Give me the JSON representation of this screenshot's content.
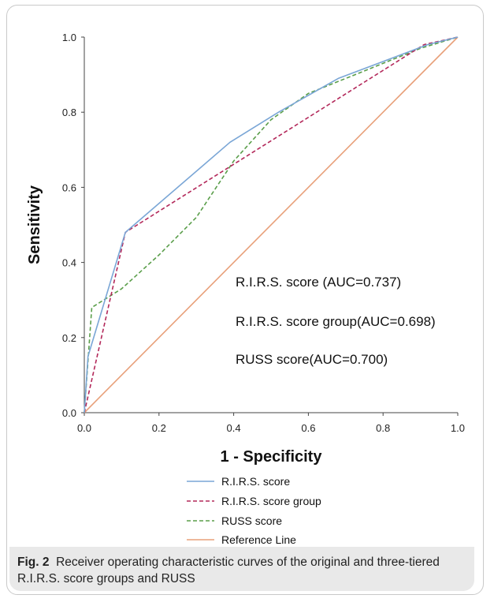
{
  "figure": {
    "label": "Fig. 2",
    "caption": "Receiver operating characteristic curves of the original and three-tiered R.I.R.S. score groups and RUSS"
  },
  "chart_data": {
    "type": "line",
    "xlabel": "1 - Specificity",
    "ylabel": "Sensitivity",
    "xlim": [
      0,
      1
    ],
    "ylim": [
      0,
      1
    ],
    "xticks": [
      "0.0",
      "0.2",
      "0.4",
      "0.6",
      "0.8",
      "1.0"
    ],
    "yticks": [
      "0.0",
      "0.2",
      "0.4",
      "0.6",
      "0.8",
      "1.0"
    ],
    "grid": false,
    "legend_position": "bottom",
    "annotations": [
      "R.I.R.S. score (AUC=0.737)",
      "R.I.R.S. score group(AUC=0.698)",
      "RUSS score(AUC=0.700)"
    ],
    "series": [
      {
        "name": "R.I.R.S. score",
        "color": "#7aa6d6",
        "dash": "solid",
        "x": [
          0,
          0.01,
          0.11,
          0.39,
          0.52,
          0.68,
          0.92,
          1.0
        ],
        "y": [
          0,
          0.15,
          0.48,
          0.72,
          0.8,
          0.89,
          0.98,
          1.0
        ]
      },
      {
        "name": "R.I.R.S. score group",
        "color": "#b3285a",
        "dash": "dashed",
        "x": [
          0,
          0.11,
          0.91,
          1.0
        ],
        "y": [
          0,
          0.48,
          0.98,
          1.0
        ]
      },
      {
        "name": "RUSS score",
        "color": "#5a9e4a",
        "dash": "dashed",
        "x": [
          0,
          0.02,
          0.1,
          0.2,
          0.3,
          0.4,
          0.5,
          0.6,
          0.7,
          0.8,
          0.9,
          1.0
        ],
        "y": [
          0,
          0.28,
          0.33,
          0.42,
          0.52,
          0.67,
          0.78,
          0.85,
          0.89,
          0.93,
          0.97,
          1.0
        ]
      },
      {
        "name": "Reference Line",
        "color": "#e8a07a",
        "dash": "solid",
        "x": [
          0,
          1
        ],
        "y": [
          0,
          1
        ]
      }
    ]
  }
}
